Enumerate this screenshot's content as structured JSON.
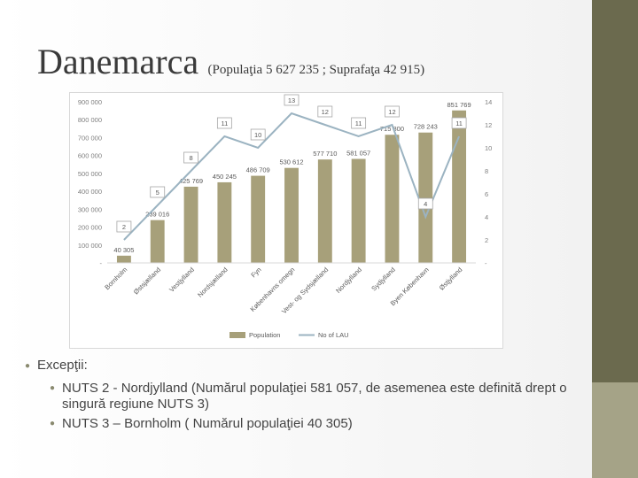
{
  "title": {
    "main": "Danemarca",
    "sub": "(Populaţia 5 627 235 ; Suprafaţa 42 915)"
  },
  "colors": {
    "bar": "#a7a07a",
    "line": "#9bb3c1",
    "sidebar_dark": "#6b6a4e",
    "sidebar_light": "#a5a387"
  },
  "chart_data": {
    "type": "bar",
    "categories": [
      "Bornholm",
      "Østsjælland",
      "Vestjylland",
      "Nordsjælland",
      "Fyn",
      "Københavns omegn",
      "Vest- og Sydsjælland",
      "Nordjylland",
      "Sydjylland",
      "Byen København",
      "Østjylland"
    ],
    "series": [
      {
        "name": "Population",
        "kind": "bar",
        "axis": "left",
        "values": [
          40305,
          239016,
          425769,
          450245,
          486709,
          530612,
          577710,
          581057,
          715800,
          728243,
          851769
        ],
        "labels": [
          "40 305",
          "239 016",
          "425 769",
          "450 245",
          "486 709",
          "530 612",
          "577 710",
          "581 057",
          "715 800",
          "728 243",
          "851 769"
        ]
      },
      {
        "name": "No of LAU",
        "kind": "line",
        "axis": "right",
        "values": [
          2,
          5,
          8,
          11,
          10,
          13,
          12,
          11,
          12,
          4,
          11
        ],
        "labels": [
          "2",
          "5",
          "8",
          "11",
          "10",
          "13",
          "12",
          "11",
          "12",
          "4",
          "11"
        ]
      }
    ],
    "y_left": {
      "range": [
        0,
        900000
      ],
      "ticks": [
        "-",
        "100 000",
        "200 000",
        "300 000",
        "400 000",
        "500 000",
        "600 000",
        "700 000",
        "800 000",
        "900 000"
      ]
    },
    "y_right": {
      "range": [
        0,
        14
      ],
      "ticks": [
        "-",
        "2",
        "4",
        "6",
        "8",
        "10",
        "12",
        "14"
      ]
    },
    "grid": false,
    "legend": "bottom"
  },
  "bullets": {
    "heading": "Excepţii:",
    "items": [
      "NUTS 2  - Nordjylland (Numărul populaţiei 581 057, de asemenea este definită drept o singură regiune NUTS 3)",
      "NUTS 3 – Bornholm ( Numărul populaţiei 40 305)"
    ]
  }
}
